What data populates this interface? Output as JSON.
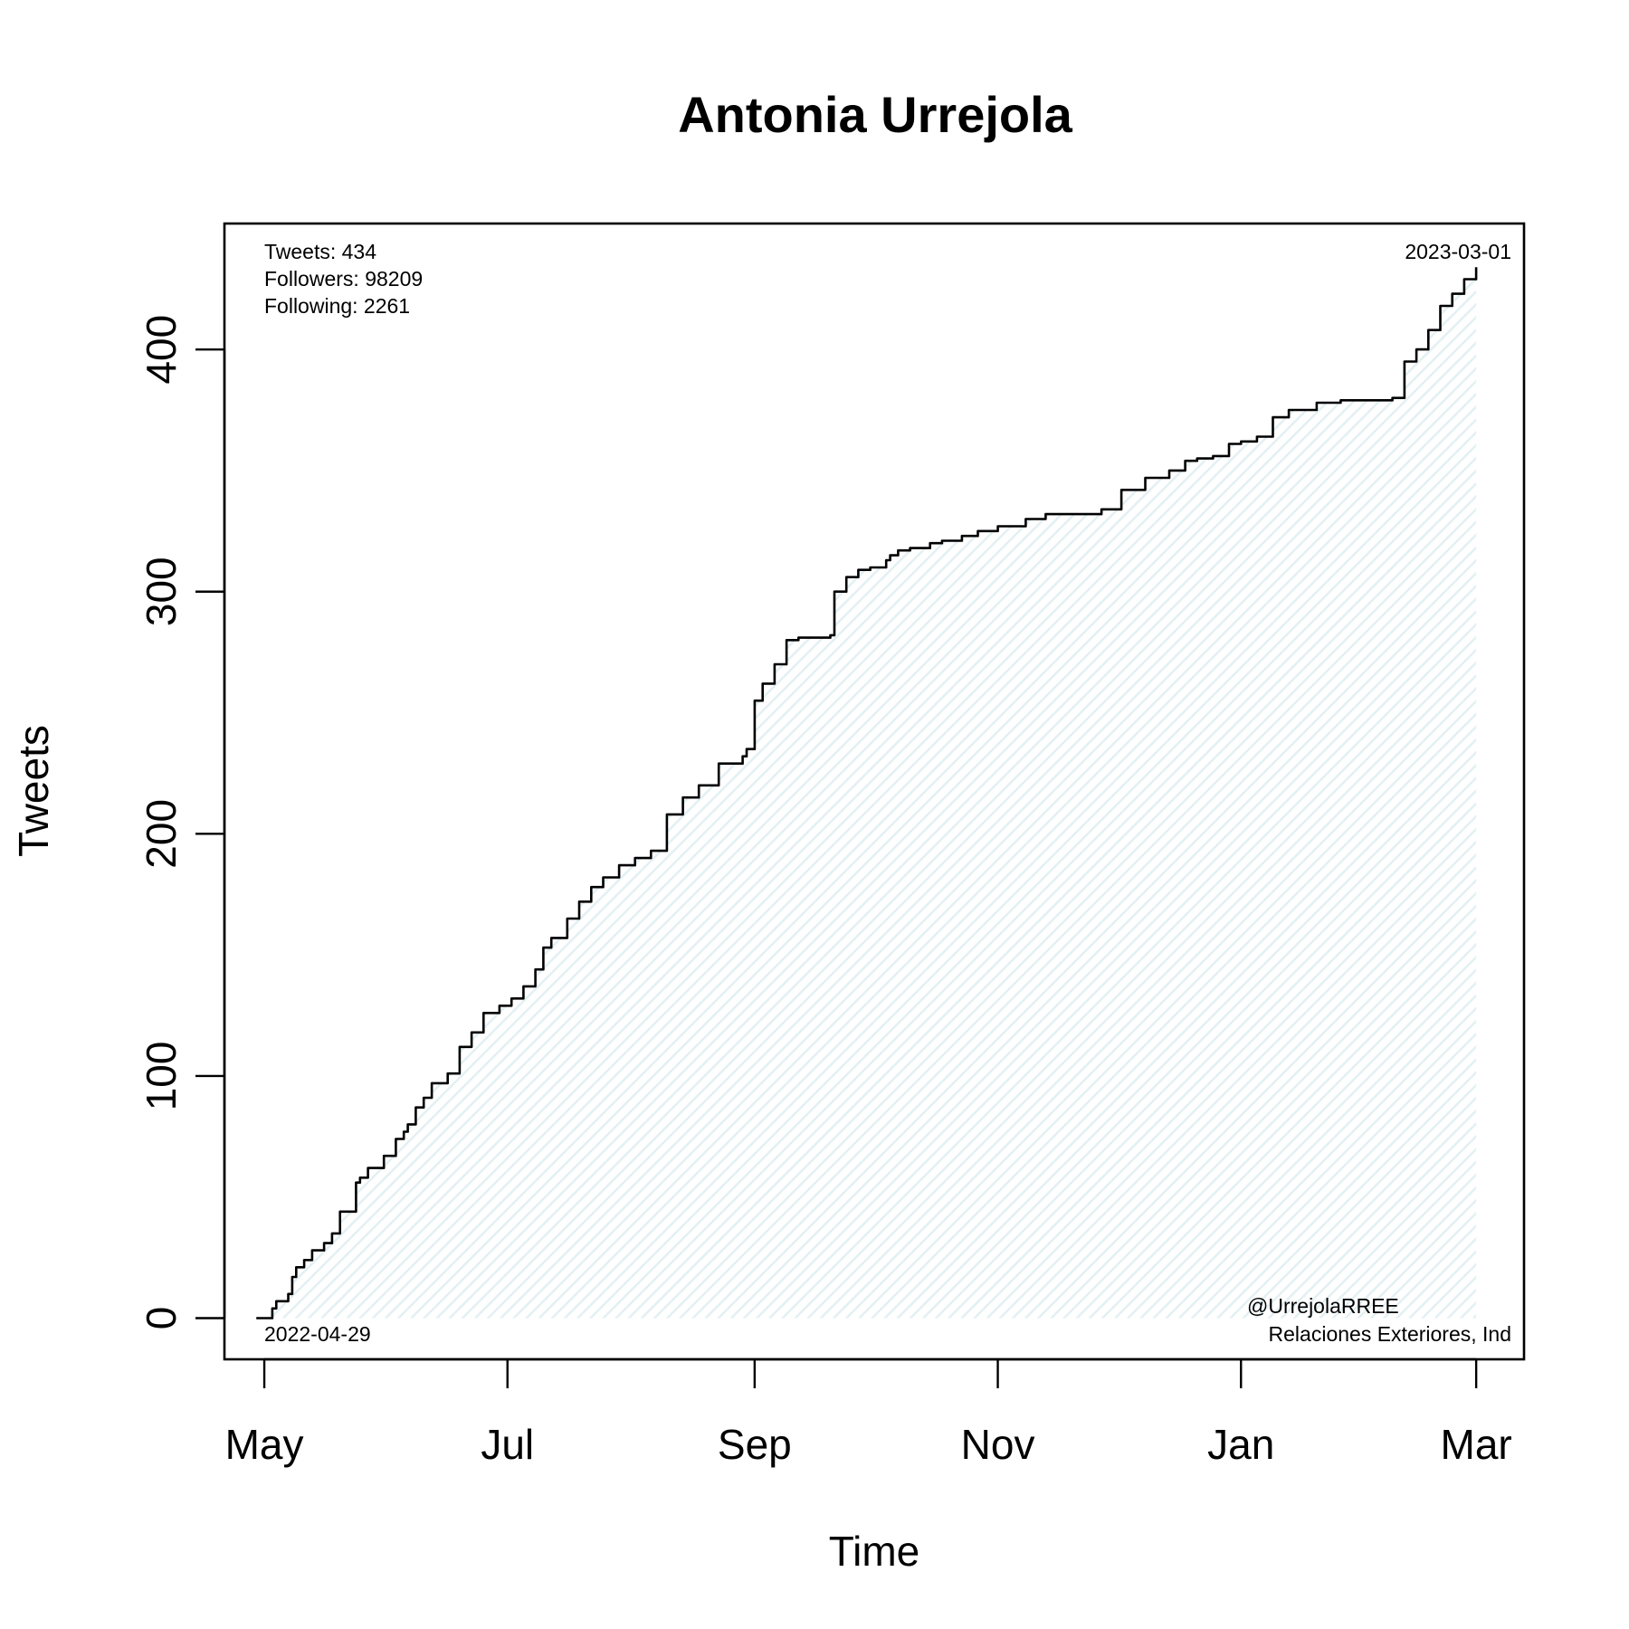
{
  "chart_data": {
    "type": "area",
    "title": "Antonia Urrejola",
    "xlabel": "Time",
    "ylabel": "Tweets",
    "x_range": [
      "2022-04-21",
      "2023-03-13"
    ],
    "ylim": [
      -17,
      452
    ],
    "x_ticks": [
      {
        "date": "2022-05-01",
        "label": "May"
      },
      {
        "date": "2022-07-01",
        "label": "Jul"
      },
      {
        "date": "2022-09-01",
        "label": "Sep"
      },
      {
        "date": "2022-11-01",
        "label": "Nov"
      },
      {
        "date": "2023-01-01",
        "label": "Jan"
      },
      {
        "date": "2023-03-01",
        "label": "Mar"
      }
    ],
    "y_ticks": [
      0,
      100,
      200,
      300,
      400
    ],
    "grid": false,
    "fill_color": "#eaf4f6",
    "line_color": "#000000",
    "series": [
      {
        "x": [
          "2022-04-29",
          "2022-05-03",
          "2022-05-04",
          "2022-05-07",
          "2022-05-08",
          "2022-05-09",
          "2022-05-11",
          "2022-05-13",
          "2022-05-16",
          "2022-05-18",
          "2022-05-20",
          "2022-05-24",
          "2022-05-25",
          "2022-05-27",
          "2022-05-31",
          "2022-06-03",
          "2022-06-05",
          "2022-06-06",
          "2022-06-08",
          "2022-06-10",
          "2022-06-12",
          "2022-06-16",
          "2022-06-19",
          "2022-06-22",
          "2022-06-25",
          "2022-06-29",
          "2022-07-02",
          "2022-07-05",
          "2022-07-08",
          "2022-07-10",
          "2022-07-12",
          "2022-07-16",
          "2022-07-19",
          "2022-07-22",
          "2022-07-25",
          "2022-07-29",
          "2022-08-02",
          "2022-08-06",
          "2022-08-10",
          "2022-08-14",
          "2022-08-18",
          "2022-08-23",
          "2022-08-29",
          "2022-08-30",
          "2022-09-01",
          "2022-09-03",
          "2022-09-06",
          "2022-09-09",
          "2022-09-12",
          "2022-09-20",
          "2022-09-21",
          "2022-09-24",
          "2022-09-27",
          "2022-09-30",
          "2022-10-04",
          "2022-10-05",
          "2022-10-07",
          "2022-10-10",
          "2022-10-15",
          "2022-10-18",
          "2022-10-23",
          "2022-10-27",
          "2022-11-01",
          "2022-11-08",
          "2022-11-13",
          "2022-11-27",
          "2022-12-02",
          "2022-12-08",
          "2022-12-14",
          "2022-12-18",
          "2022-12-21",
          "2022-12-25",
          "2022-12-29",
          "2023-01-01",
          "2023-01-05",
          "2023-01-09",
          "2023-01-13",
          "2023-01-20",
          "2023-01-26",
          "2023-02-08",
          "2023-02-11",
          "2023-02-14",
          "2023-02-17",
          "2023-02-20",
          "2023-02-23",
          "2023-02-26",
          "2023-03-01"
        ],
        "values": [
          0,
          4,
          7,
          10,
          17,
          21,
          24,
          28,
          31,
          35,
          44,
          56,
          58,
          62,
          67,
          74,
          77,
          80,
          87,
          91,
          97,
          101,
          112,
          118,
          126,
          129,
          132,
          137,
          144,
          153,
          157,
          165,
          172,
          178,
          182,
          187,
          190,
          193,
          208,
          215,
          220,
          229,
          232,
          235,
          255,
          262,
          270,
          280,
          281,
          282,
          300,
          306,
          309,
          310,
          313,
          315,
          317,
          318,
          320,
          321,
          323,
          325,
          327,
          330,
          332,
          334,
          342,
          347,
          350,
          354,
          355,
          356,
          361,
          362,
          364,
          372,
          375,
          378,
          379,
          380,
          395,
          400,
          408,
          418,
          423,
          429,
          434
        ]
      }
    ]
  },
  "annotations": {
    "tweets": "Tweets: 434",
    "followers": "Followers: 98209",
    "following": "Following: 2261",
    "start_date": "2022-04-29",
    "end_date": "2023-03-01",
    "handle": "@UrrejolaRREE",
    "affiliation": "Relaciones Exteriores, Ind"
  }
}
